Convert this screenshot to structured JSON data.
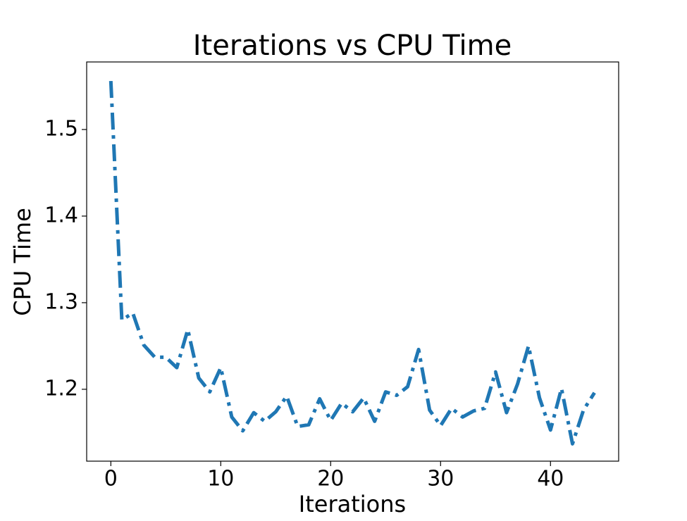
{
  "chart_data": {
    "type": "line",
    "title": "Iterations vs CPU Time",
    "x_label": "Iterations",
    "y_label": "CPU Time",
    "x": [
      0,
      1,
      2,
      3,
      4,
      5,
      6,
      7,
      8,
      9,
      10,
      11,
      12,
      13,
      14,
      15,
      16,
      17,
      18,
      19,
      20,
      21,
      22,
      23,
      24,
      25,
      26,
      27,
      28,
      29,
      30,
      31,
      32,
      33,
      34,
      35,
      36,
      37,
      38,
      39,
      40,
      41,
      42,
      43,
      44
    ],
    "series": [
      {
        "color": "#1f77b4",
        "values": [
          1.556,
          1.28,
          1.288,
          1.251,
          1.237,
          1.237,
          1.225,
          1.269,
          1.213,
          1.197,
          1.225,
          1.168,
          1.152,
          1.173,
          1.163,
          1.174,
          1.192,
          1.157,
          1.159,
          1.189,
          1.164,
          1.184,
          1.174,
          1.19,
          1.163,
          1.197,
          1.193,
          1.203,
          1.246,
          1.176,
          1.158,
          1.178,
          1.168,
          1.175,
          1.178,
          1.22,
          1.173,
          1.206,
          1.25,
          1.19,
          1.153,
          1.201,
          1.137,
          1.176,
          1.196
        ]
      }
    ],
    "xlim": [
      -2.2,
      46.2
    ],
    "ylim": [
      1.117,
      1.578
    ],
    "xticks": [
      0,
      10,
      20,
      30,
      40
    ],
    "yticks": [
      1.2,
      1.3,
      1.4,
      1.5
    ],
    "grid": false
  }
}
